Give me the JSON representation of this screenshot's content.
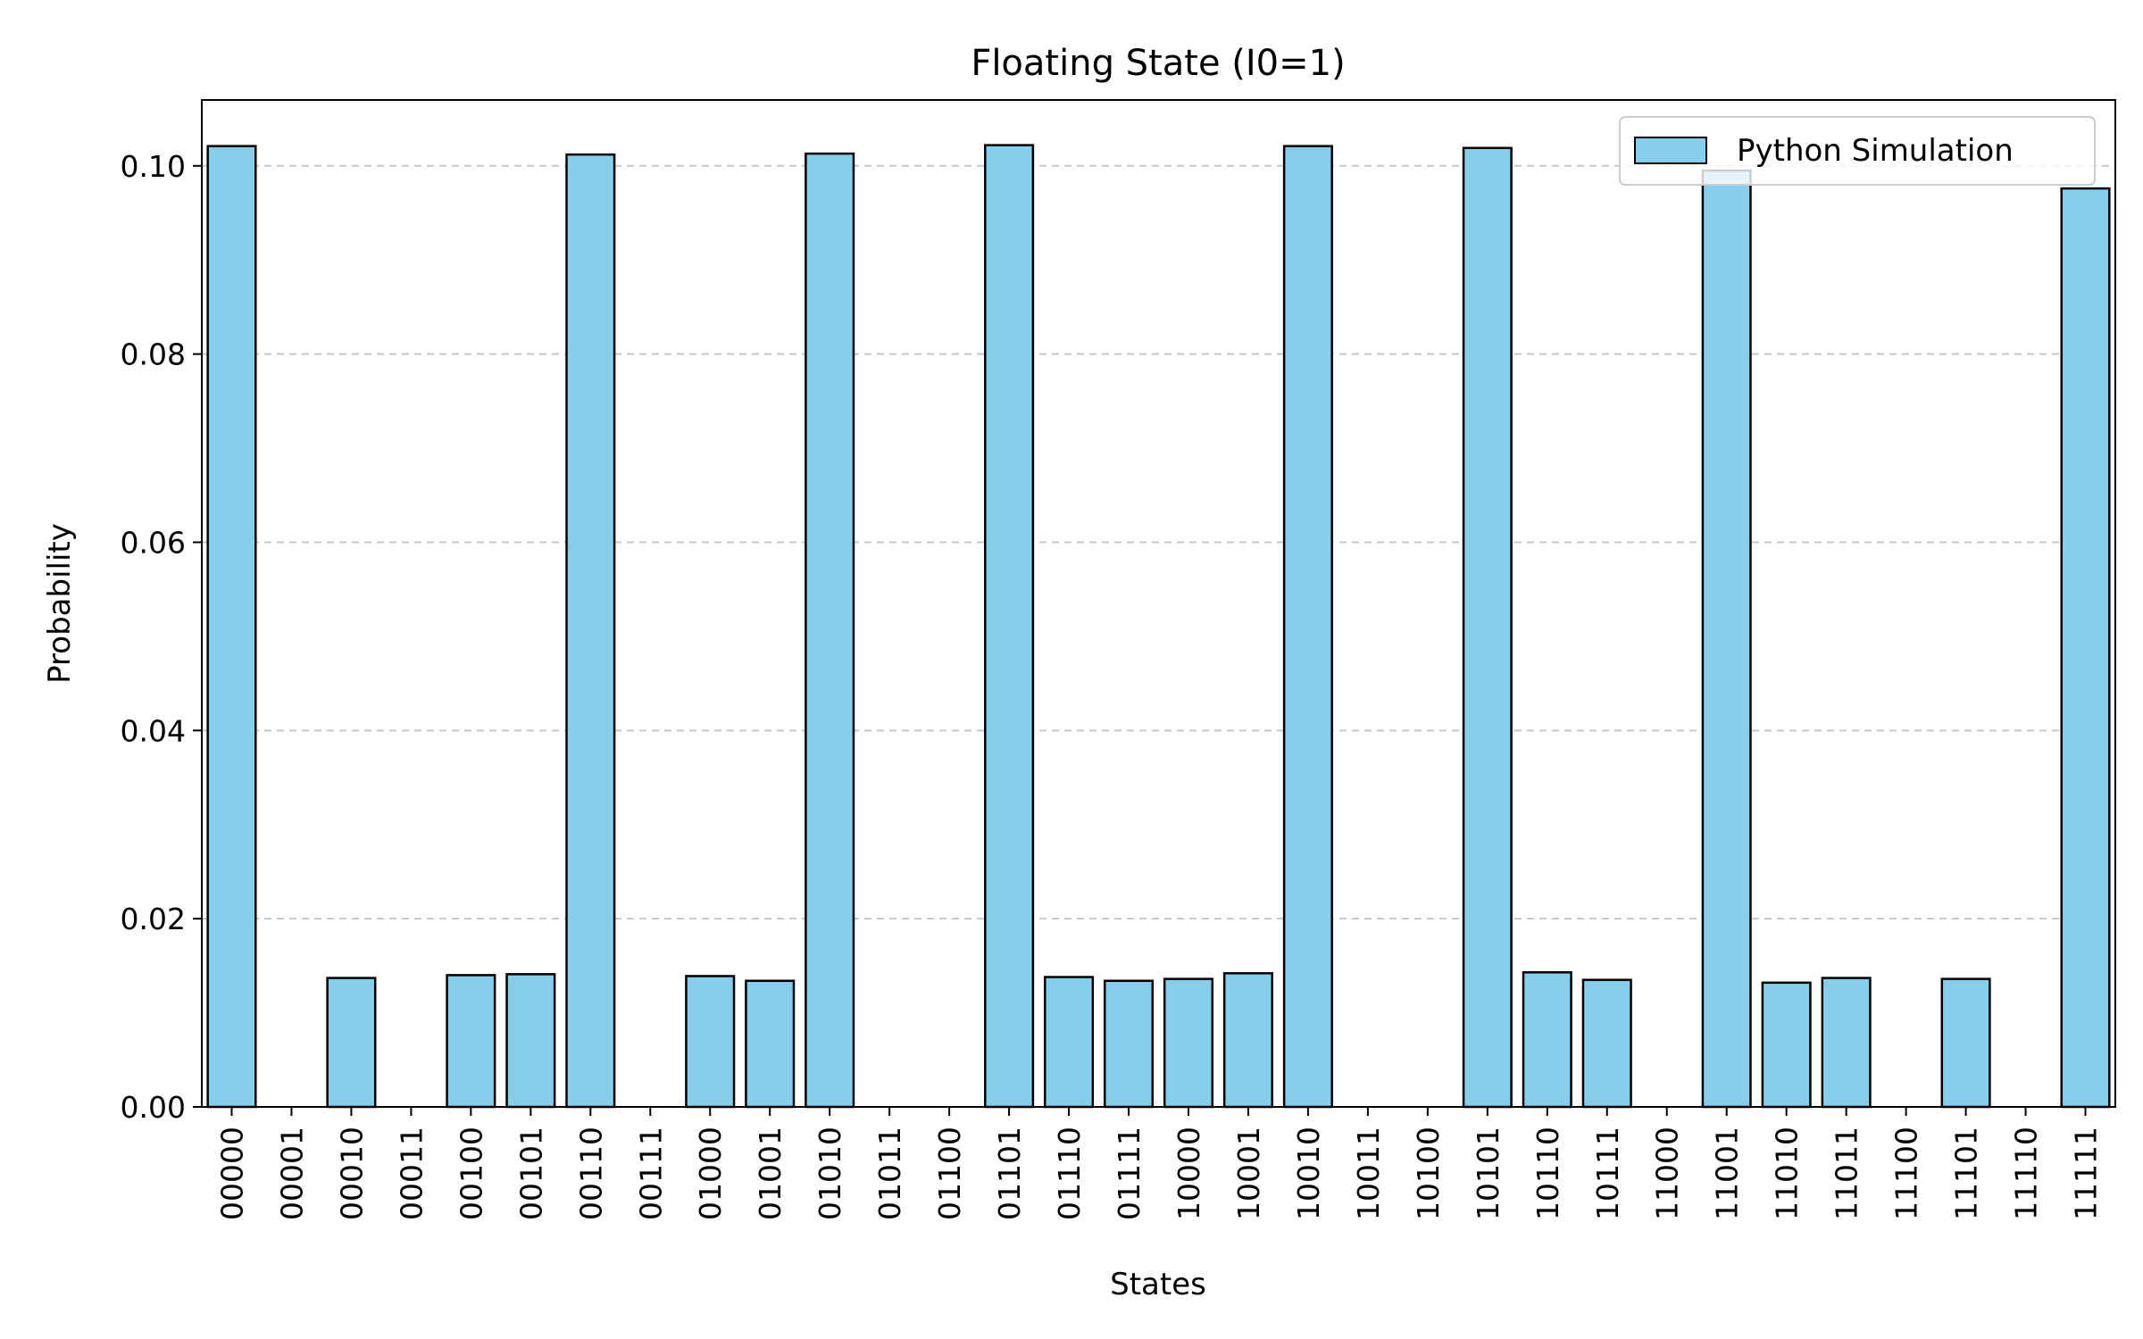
{
  "chart_data": {
    "type": "bar",
    "title": "Floating State (I0=1)",
    "xlabel": "States",
    "ylabel": "Probability",
    "ylim": [
      0,
      0.107
    ],
    "yticks": [
      "0.00",
      "0.02",
      "0.04",
      "0.06",
      "0.08",
      "0.10"
    ],
    "grid": "y dashed",
    "legend_position": "top-right",
    "bar_color": "#87CEEB",
    "highlight_tick_color": "#ff0000",
    "categories": [
      "00000",
      "00001",
      "00010",
      "00011",
      "00100",
      "00101",
      "00110",
      "00111",
      "01000",
      "01001",
      "01010",
      "01011",
      "01100",
      "01101",
      "01110",
      "01111",
      "10000",
      "10001",
      "10010",
      "10011",
      "10100",
      "10101",
      "10110",
      "10111",
      "11000",
      "11001",
      "11010",
      "11011",
      "11100",
      "11101",
      "11110",
      "11111"
    ],
    "highlighted": [
      "00000",
      "00110",
      "01010",
      "01101",
      "10010",
      "10101",
      "11001",
      "11111"
    ],
    "series": [
      {
        "name": "Python Simulation",
        "values": [
          0.1021,
          0,
          0.0137,
          0,
          0.014,
          0.0141,
          0.1012,
          0,
          0.0139,
          0.0134,
          0.1013,
          0,
          0,
          0.1022,
          0.0138,
          0.0134,
          0.0136,
          0.0142,
          0.1021,
          0,
          0,
          0.1019,
          0.0143,
          0.0135,
          0,
          0.0995,
          0.0132,
          0.0137,
          0,
          0.0136,
          0,
          0.0976
        ]
      }
    ]
  }
}
